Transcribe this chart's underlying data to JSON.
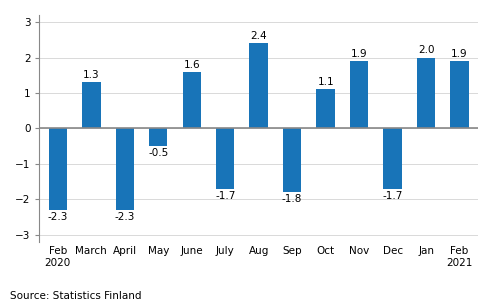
{
  "categories": [
    "Feb\n2020",
    "March",
    "April",
    "May",
    "June",
    "July",
    "Aug",
    "Sep",
    "Oct",
    "Nov",
    "Dec",
    "Jan",
    "Feb\n2021"
  ],
  "values": [
    -2.3,
    1.3,
    -2.3,
    -0.5,
    1.6,
    -1.7,
    2.4,
    -1.8,
    1.1,
    1.9,
    -1.7,
    2.0,
    1.9
  ],
  "ylim": [
    -3.2,
    3.2
  ],
  "yticks": [
    -3,
    -2,
    -1,
    0,
    1,
    2,
    3
  ],
  "source_text": "Source: Statistics Finland",
  "label_fontsize": 7.5,
  "tick_fontsize": 7.5,
  "source_fontsize": 7.5,
  "bar_width": 0.55,
  "grid_color": "#d9d9d9",
  "zero_line_color": "#888888",
  "bar_fill_color": "#1874b8",
  "spine_color": "#888888"
}
